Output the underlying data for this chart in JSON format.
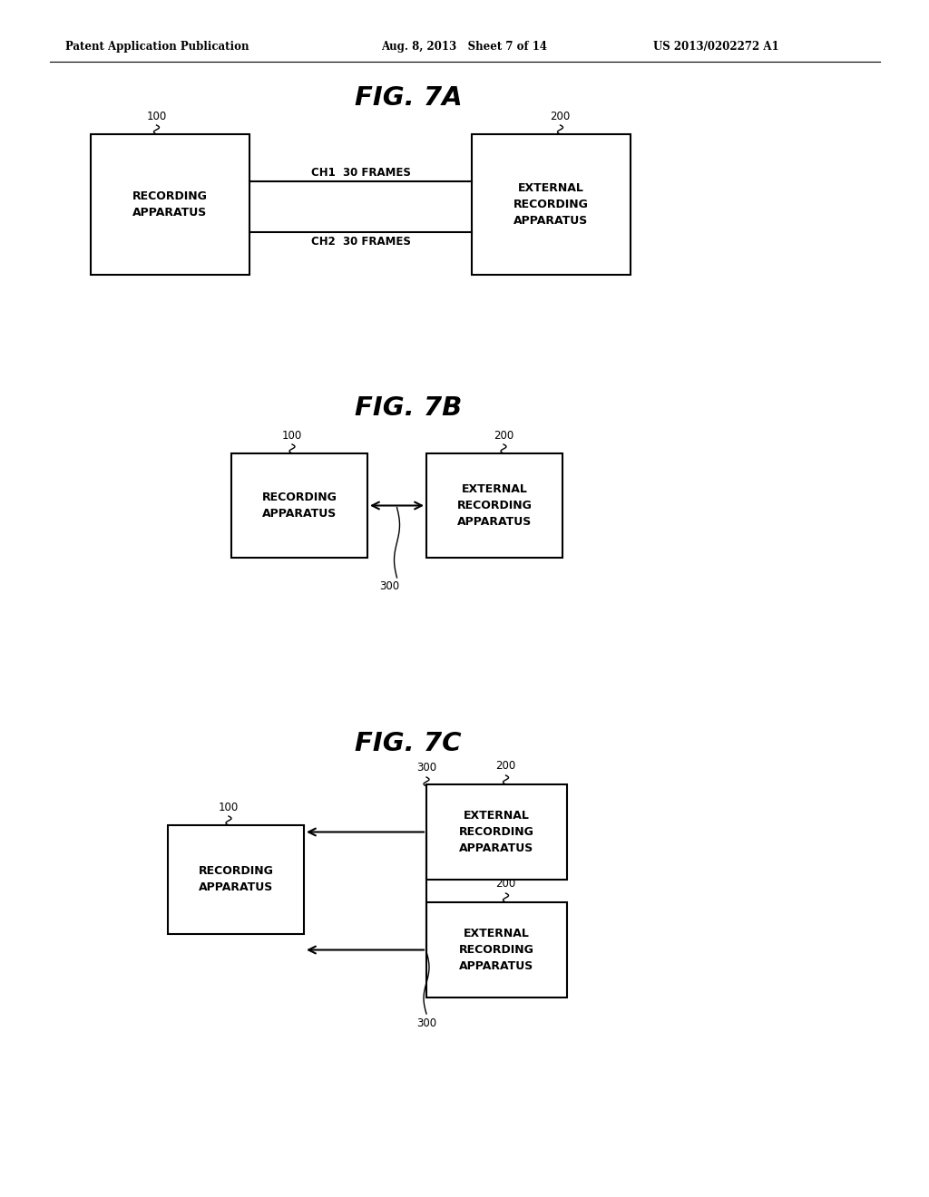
{
  "bg_color": "#ffffff",
  "header_left": "Patent Application Publication",
  "header_mid": "Aug. 8, 2013   Sheet 7 of 14",
  "header_right": "US 2013/0202272 A1",
  "fig7a_title": "FIG. 7A",
  "fig7b_title": "FIG. 7B",
  "fig7c_title": "FIG. 7C"
}
